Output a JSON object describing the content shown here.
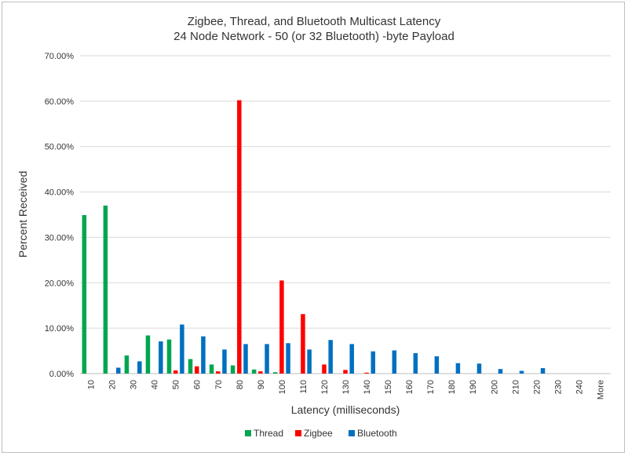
{
  "chart_data": {
    "type": "bar",
    "title": "Zigbee, Thread, and Bluetooth Multicast Latency",
    "subtitle": "24 Node Network - 50 (or 32 Bluetooth) -byte Payload",
    "xlabel": "Latency (milliseconds)",
    "ylabel": "Percent Received",
    "ylim": [
      0,
      70
    ],
    "y_ticks": [
      "0.00%",
      "10.00%",
      "20.00%",
      "30.00%",
      "40.00%",
      "50.00%",
      "60.00%",
      "70.00%"
    ],
    "grid": "horizontal",
    "legend_position": "bottom",
    "categories": [
      "10",
      "20",
      "30",
      "40",
      "50",
      "60",
      "70",
      "80",
      "90",
      "100",
      "110",
      "120",
      "130",
      "140",
      "150",
      "160",
      "170",
      "180",
      "190",
      "200",
      "210",
      "220",
      "230",
      "240",
      "More"
    ],
    "series": [
      {
        "name": "Thread",
        "color": "#00a650",
        "values": [
          34.9,
          37.0,
          4.0,
          8.4,
          7.5,
          3.2,
          2.0,
          1.8,
          0.9,
          0.3,
          0,
          0,
          0,
          0,
          0,
          0,
          0,
          0,
          0,
          0,
          0,
          0,
          0,
          0,
          0
        ]
      },
      {
        "name": "Zigbee",
        "color": "#ff0000",
        "values": [
          0,
          0,
          0,
          0,
          0.7,
          1.6,
          0.5,
          60.2,
          0.5,
          20.5,
          13.1,
          2.0,
          0.8,
          0.2,
          0,
          0,
          0,
          0,
          0,
          0,
          0,
          0,
          0,
          0,
          0
        ]
      },
      {
        "name": "Bluetooth",
        "color": "#0070c0",
        "values": [
          0,
          1.3,
          2.7,
          7.1,
          10.8,
          8.2,
          5.3,
          6.5,
          6.5,
          6.7,
          5.3,
          7.4,
          6.5,
          4.9,
          5.1,
          4.5,
          3.8,
          2.3,
          2.2,
          1.0,
          0.6,
          1.2,
          0,
          0,
          0
        ]
      }
    ]
  }
}
